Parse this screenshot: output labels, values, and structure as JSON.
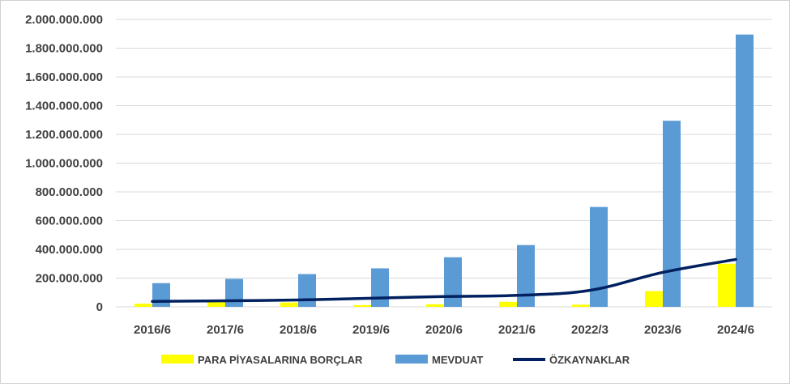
{
  "chart_data": {
    "type": "bar",
    "categories": [
      "2016/6",
      "2017/6",
      "2018/6",
      "2019/6",
      "2020/6",
      "2021/6",
      "2022/3",
      "2023/6",
      "2024/6"
    ],
    "series": [
      {
        "name": "PARA PİYASALARINA BORÇLAR",
        "type": "bar",
        "color": "#FFFF00",
        "values": [
          22000000,
          35000000,
          30000000,
          12000000,
          18000000,
          35000000,
          15000000,
          110000000,
          300000000
        ]
      },
      {
        "name": "MEVDUAT",
        "type": "bar",
        "color": "#5B9BD5",
        "values": [
          165000000,
          195000000,
          228000000,
          268000000,
          345000000,
          430000000,
          695000000,
          1295000000,
          1895000000
        ]
      },
      {
        "name": "ÖZKAYNAKLAR",
        "type": "line",
        "color": "#002060",
        "values": [
          38000000,
          42000000,
          48000000,
          60000000,
          72000000,
          80000000,
          115000000,
          240000000,
          330000000
        ]
      }
    ],
    "ylim": [
      0,
      2000000000
    ],
    "yticks": [
      0,
      200000000,
      400000000,
      600000000,
      800000000,
      1000000000,
      1200000000,
      1400000000,
      1600000000,
      1800000000,
      2000000000
    ],
    "ytick_labels": [
      "0",
      "200.000.000",
      "400.000.000",
      "600.000.000",
      "800.000.000",
      "1.000.000.000",
      "1.200.000.000",
      "1.400.000.000",
      "1.600.000.000",
      "1.800.000.000",
      "2.000.000.000"
    ],
    "title": "",
    "xlabel": "",
    "ylabel": "",
    "grid": true,
    "legend_position": "bottom",
    "gridline_color": "#D9D9D9"
  }
}
